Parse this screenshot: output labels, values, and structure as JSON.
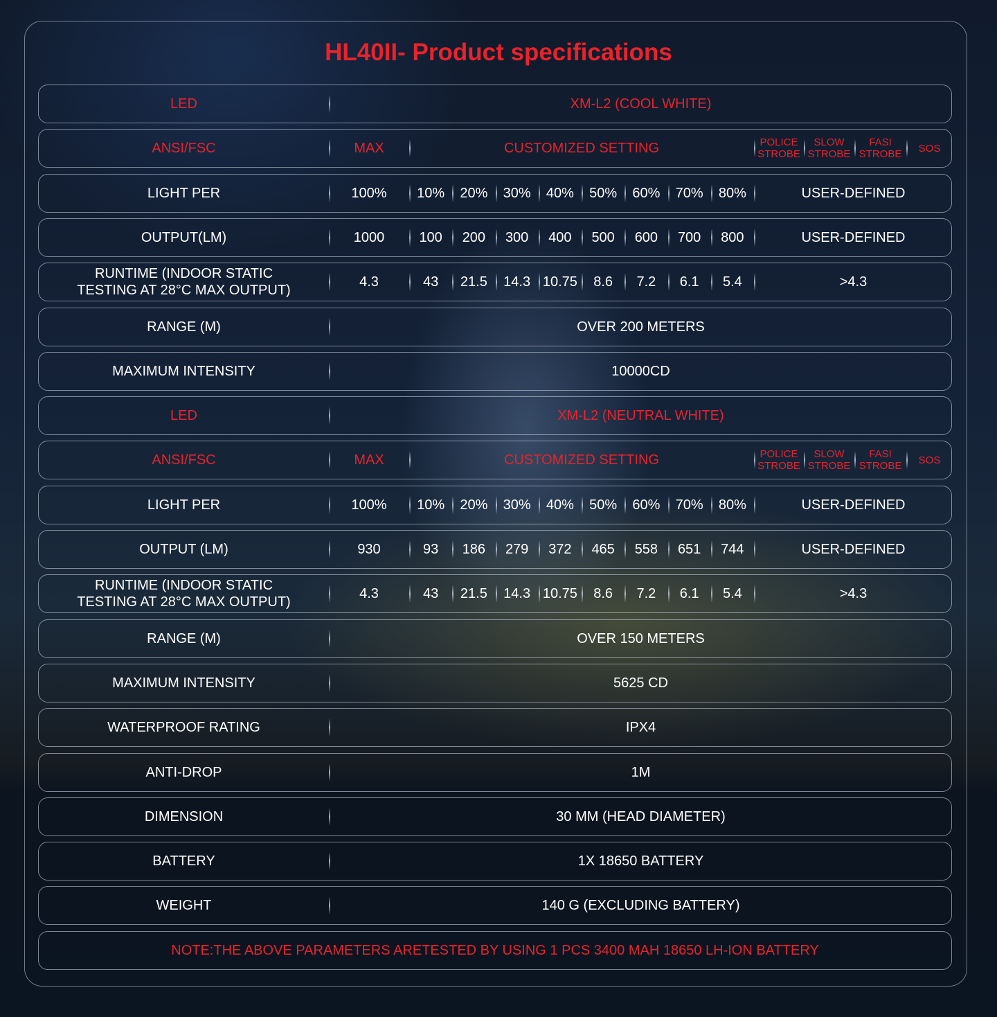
{
  "title": "HL40II- Product specifications",
  "colors": {
    "accent": "#e8232a",
    "text": "#ffffff"
  },
  "rows": [
    {
      "type": "span",
      "red": true,
      "label": "LED",
      "value": "XM-L2 (COOL WHITE)"
    },
    {
      "type": "modes",
      "label": "ANSI/FSC",
      "max": "MAX",
      "custom": "CUSTOMIZED SETTING",
      "modes": [
        "POLICE STROBE",
        "SLOW STROBE",
        "FASI STROBE",
        "SOS"
      ]
    },
    {
      "type": "levels",
      "label": "LIGHT PER",
      "max": "100%",
      "levels": [
        "10%",
        "20%",
        "30%",
        "40%",
        "50%",
        "60%",
        "70%",
        "80%"
      ],
      "extra": "USER-DEFINED"
    },
    {
      "type": "levels",
      "label": "OUTPUT(LM)",
      "max": "1000",
      "levels": [
        "100",
        "200",
        "300",
        "400",
        "500",
        "600",
        "700",
        "800"
      ],
      "extra": "USER-DEFINED"
    },
    {
      "type": "levels",
      "label": "RUNTIME (INDOOR STATIC TESTING AT 28°C MAX OUTPUT)",
      "max": "4.3",
      "levels": [
        "43",
        "21.5",
        "14.3",
        "10.75",
        "8.6",
        "7.2",
        "6.1",
        "5.4"
      ],
      "extra": ">4.3"
    },
    {
      "type": "span",
      "label": "RANGE (M)",
      "value": "OVER 200 METERS"
    },
    {
      "type": "span",
      "label": "MAXIMUM INTENSITY",
      "value": "10000CD"
    },
    {
      "type": "span",
      "red": true,
      "label": "LED",
      "value": "XM-L2 (NEUTRAL WHITE)"
    },
    {
      "type": "modes",
      "label": "ANSI/FSC",
      "max": "MAX",
      "custom": "CUSTOMIZED SETTING",
      "modes": [
        "POLICE STROBE",
        "SLOW STROBE",
        "FASI STROBE",
        "SOS"
      ]
    },
    {
      "type": "levels",
      "label": "LIGHT PER",
      "max": "100%",
      "levels": [
        "10%",
        "20%",
        "30%",
        "40%",
        "50%",
        "60%",
        "70%",
        "80%"
      ],
      "extra": "USER-DEFINED"
    },
    {
      "type": "levels",
      "label": "OUTPUT (LM)",
      "max": "930",
      "levels": [
        "93",
        "186",
        "279",
        "372",
        "465",
        "558",
        "651",
        "744"
      ],
      "extra": "USER-DEFINED"
    },
    {
      "type": "levels",
      "label": "RUNTIME (INDOOR STATIC TESTING AT 28°C MAX OUTPUT)",
      "max": "4.3",
      "levels": [
        "43",
        "21.5",
        "14.3",
        "10.75",
        "8.6",
        "7.2",
        "6.1",
        "5.4"
      ],
      "extra": ">4.3"
    },
    {
      "type": "span",
      "label": "RANGE (M)",
      "value": "OVER 150 METERS"
    },
    {
      "type": "span",
      "label": "MAXIMUM INTENSITY",
      "value": "5625 CD"
    },
    {
      "type": "span",
      "label": "WATERPROOF RATING",
      "value": "IPX4"
    },
    {
      "type": "span",
      "label": "ANTI-DROP",
      "value": "1M"
    },
    {
      "type": "span",
      "label": "DIMENSION",
      "value": "30 MM (HEAD DIAMETER)"
    },
    {
      "type": "span",
      "label": "BATTERY",
      "value": "1X 18650 BATTERY"
    },
    {
      "type": "span",
      "label": "WEIGHT",
      "value": "140 G (EXCLUDING BATTERY)"
    }
  ],
  "note": "NOTE:THE ABOVE PARAMETERS ARETESTED BY USING 1 PCS 3400 MAH 18650 LH-ION BATTERY"
}
